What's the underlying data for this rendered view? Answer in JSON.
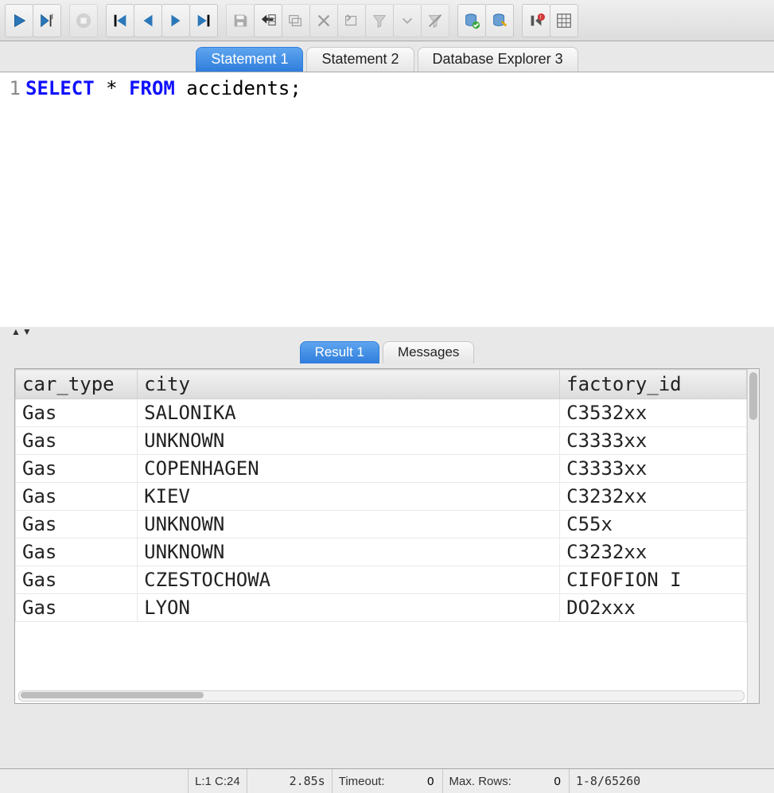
{
  "toolbar": {
    "run": "Run",
    "run_cursor": "Run at cursor",
    "stop": "Stop",
    "first": "First",
    "prev": "Previous",
    "next": "Next",
    "last": "Last",
    "save": "Save",
    "insert_row": "Insert row",
    "duplicate_row": "Duplicate row",
    "delete_row": "Delete row",
    "commit": "Commit",
    "filter": "Filter",
    "filter_drop": "Filter dropdown",
    "filter_off": "Filter off",
    "db_connect": "Connect",
    "db_exec": "Execute",
    "disconnect": "Disconnect",
    "layout": "Layout"
  },
  "tabs": {
    "items": [
      {
        "label": "Statement 1",
        "active": true
      },
      {
        "label": "Statement 2",
        "active": false
      },
      {
        "label": "Database Explorer 3",
        "active": false
      }
    ]
  },
  "editor": {
    "line_no": "1",
    "sql_keyword1": "SELECT",
    "sql_star": " * ",
    "sql_keyword2": "FROM",
    "sql_rest": " accidents;"
  },
  "result_tabs": {
    "items": [
      {
        "label": "Result 1",
        "active": true
      },
      {
        "label": "Messages",
        "active": false
      }
    ]
  },
  "grid": {
    "columns": [
      "car_type",
      "city",
      "factory_id"
    ],
    "rows": [
      [
        "Gas",
        "SALONIKA",
        "C3532xx"
      ],
      [
        "Gas",
        "UNKNOWN",
        "C3333xx"
      ],
      [
        "Gas",
        "COPENHAGEN",
        "C3333xx"
      ],
      [
        "Gas",
        "KIEV",
        "C3232xx"
      ],
      [
        "Gas",
        "UNKNOWN",
        "C55x"
      ],
      [
        "Gas",
        "UNKNOWN",
        "C3232xx"
      ],
      [
        "Gas",
        "CZESTOCHOWA",
        "CIFOFION I"
      ],
      [
        "Gas",
        "LYON",
        "DO2xxx"
      ]
    ]
  },
  "status": {
    "cursor": "L:1 C:24",
    "elapsed": "2.85s",
    "timeout_label": "Timeout:",
    "timeout_value": "0",
    "maxrows_label": "Max. Rows:",
    "maxrows_value": "0",
    "range": "1-8/65260"
  }
}
